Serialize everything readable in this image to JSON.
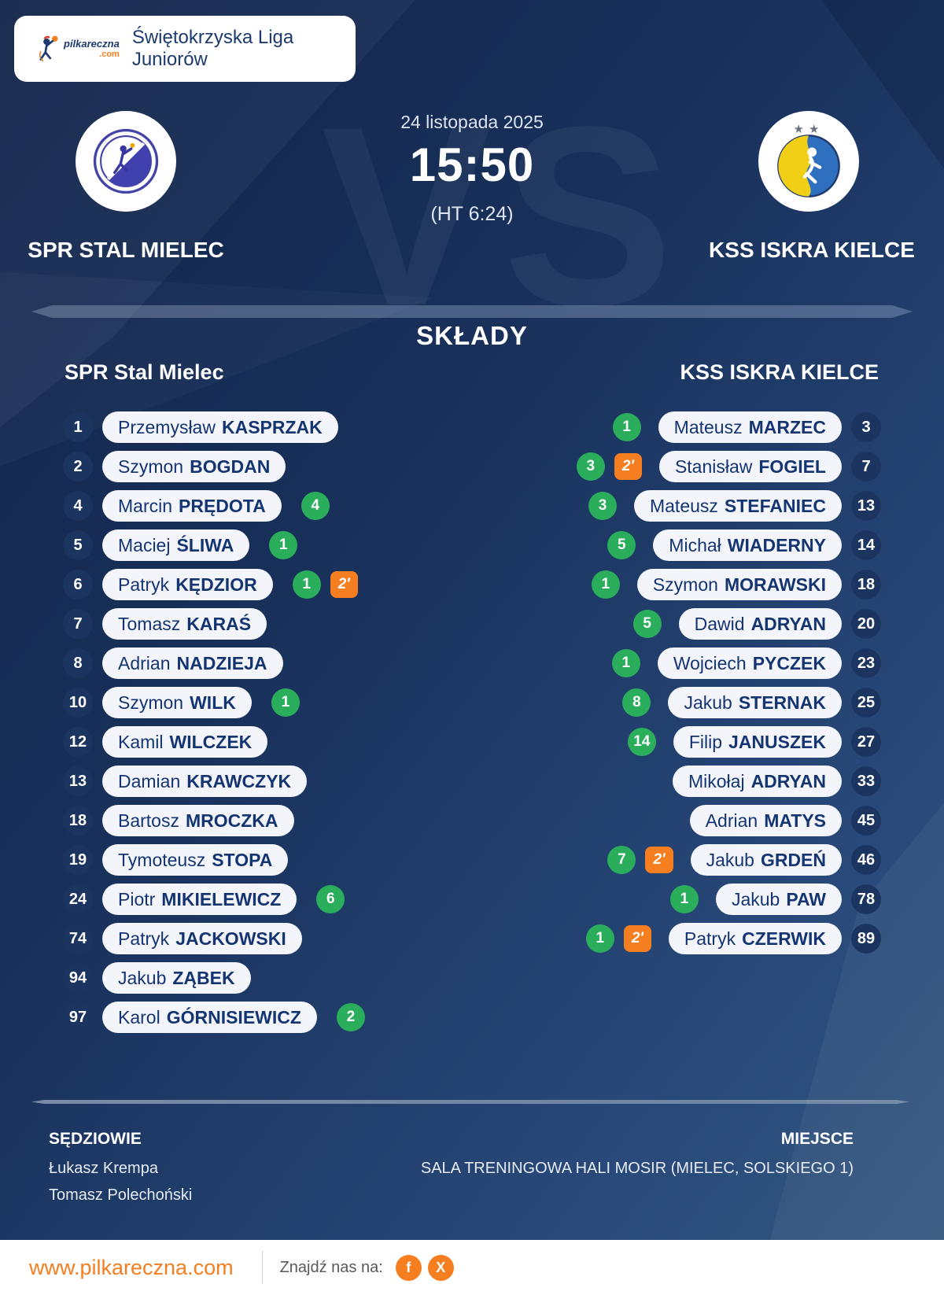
{
  "banner": {
    "league": "Świętokrzyska Liga Juniorów",
    "logo_name": "pilkareczna",
    "logo_tld": ".com"
  },
  "match": {
    "date": "24 listopada 2025",
    "time": "15:50",
    "halftime": "(HT 6:24)",
    "vs_watermark": "VS",
    "home_name": "SPR STAL MIELEC",
    "away_name": "KSS ISKRA KIELCE"
  },
  "lineups": {
    "title": "SKŁADY",
    "home_header": "SPR Stal Mielec",
    "away_header": "KSS ISKRA KIELCE",
    "home": [
      {
        "number": "1",
        "first": "Przemysław",
        "last": "KASPRZAK",
        "goals": "",
        "penalty": ""
      },
      {
        "number": "2",
        "first": "Szymon",
        "last": "BOGDAN",
        "goals": "",
        "penalty": ""
      },
      {
        "number": "4",
        "first": "Marcin",
        "last": "PRĘDOTA",
        "goals": "4",
        "penalty": ""
      },
      {
        "number": "5",
        "first": "Maciej",
        "last": "ŚLIWA",
        "goals": "1",
        "penalty": ""
      },
      {
        "number": "6",
        "first": "Patryk",
        "last": "KĘDZIOR",
        "goals": "1",
        "penalty": "2'"
      },
      {
        "number": "7",
        "first": "Tomasz",
        "last": "KARAŚ",
        "goals": "",
        "penalty": ""
      },
      {
        "number": "8",
        "first": "Adrian",
        "last": "NADZIEJA",
        "goals": "",
        "penalty": ""
      },
      {
        "number": "10",
        "first": "Szymon",
        "last": "WILK",
        "goals": "1",
        "penalty": ""
      },
      {
        "number": "12",
        "first": "Kamil",
        "last": "WILCZEK",
        "goals": "",
        "penalty": ""
      },
      {
        "number": "13",
        "first": "Damian",
        "last": "KRAWCZYK",
        "goals": "",
        "penalty": ""
      },
      {
        "number": "18",
        "first": "Bartosz",
        "last": "MROCZKA",
        "goals": "",
        "penalty": ""
      },
      {
        "number": "19",
        "first": "Tymoteusz",
        "last": "STOPA",
        "goals": "",
        "penalty": ""
      },
      {
        "number": "24",
        "first": "Piotr",
        "last": "MIKIELEWICZ",
        "goals": "6",
        "penalty": ""
      },
      {
        "number": "74",
        "first": "Patryk",
        "last": "JACKOWSKI",
        "goals": "",
        "penalty": ""
      },
      {
        "number": "94",
        "first": "Jakub",
        "last": "ZĄBEK",
        "goals": "",
        "penalty": ""
      },
      {
        "number": "97",
        "first": "Karol",
        "last": "GÓRNISIEWICZ",
        "goals": "2",
        "penalty": ""
      }
    ],
    "away": [
      {
        "number": "3",
        "first": "Mateusz",
        "last": "MARZEC",
        "goals": "1",
        "penalty": ""
      },
      {
        "number": "7",
        "first": "Stanisław",
        "last": "FOGIEL",
        "goals": "3",
        "penalty": "2'"
      },
      {
        "number": "13",
        "first": "Mateusz",
        "last": "STEFANIEC",
        "goals": "3",
        "penalty": ""
      },
      {
        "number": "14",
        "first": "Michał",
        "last": "WIADERNY",
        "goals": "5",
        "penalty": ""
      },
      {
        "number": "18",
        "first": "Szymon",
        "last": "MORAWSKI",
        "goals": "1",
        "penalty": ""
      },
      {
        "number": "20",
        "first": "Dawid",
        "last": "ADRYAN",
        "goals": "5",
        "penalty": ""
      },
      {
        "number": "23",
        "first": "Wojciech",
        "last": "PYCZEK",
        "goals": "1",
        "penalty": ""
      },
      {
        "number": "25",
        "first": "Jakub",
        "last": "STERNAK",
        "goals": "8",
        "penalty": ""
      },
      {
        "number": "27",
        "first": "Filip",
        "last": "JANUSZEK",
        "goals": "14",
        "penalty": ""
      },
      {
        "number": "33",
        "first": "Mikołaj",
        "last": "ADRYAN",
        "goals": "",
        "penalty": ""
      },
      {
        "number": "45",
        "first": "Adrian",
        "last": "MATYS",
        "goals": "",
        "penalty": ""
      },
      {
        "number": "46",
        "first": "Jakub",
        "last": "GRDEŃ",
        "goals": "7",
        "penalty": "2'"
      },
      {
        "number": "78",
        "first": "Jakub",
        "last": "PAW",
        "goals": "1",
        "penalty": ""
      },
      {
        "number": "89",
        "first": "Patryk",
        "last": "CZERWIK",
        "goals": "1",
        "penalty": "2'"
      }
    ]
  },
  "details": {
    "referees_label": "SĘDZIOWIE",
    "referees": [
      "Łukasz Krempa",
      "Tomasz Polechoński"
    ],
    "venue_label": "MIEJSCE",
    "venue": "SALA TRENINGOWA HALI MOSIR (MIELEC, SOLSKIEGO 1)"
  },
  "footer": {
    "url": "www.pilkareczna.com",
    "find_us": "Znajdź nas na:",
    "facebook_glyph": "f",
    "x_glyph": "X"
  },
  "colors": {
    "accent_orange": "#f57e20",
    "goal_green": "#2bae5c",
    "pill_text_navy": "#143472",
    "background_dark": "#12244a",
    "background_light": "#35597f",
    "number_circle": "#1c3560"
  }
}
